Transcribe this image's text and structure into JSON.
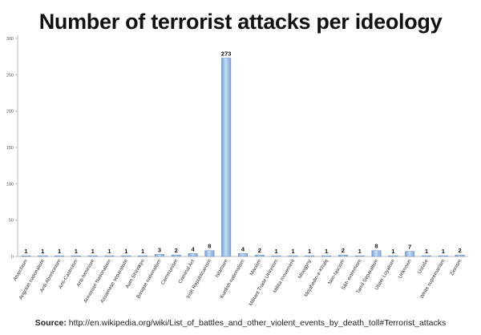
{
  "source": {
    "label": "Source:",
    "url": "http://en.wikipedia.org/wiki/List_of_battles_and_other_violent_events_by_death_toll#Terrorist_attacks"
  },
  "chart_data": {
    "type": "bar",
    "title": "Number of terrorist attacks per ideology",
    "xlabel": "",
    "ylabel": "",
    "ylim": [
      0,
      300
    ],
    "yticks": [
      0,
      50,
      100,
      150,
      200,
      250,
      300
    ],
    "grid": false,
    "categories": [
      "Anarchism",
      "Angolan nationalism",
      "Anti-Abortionism",
      "Anti-Castroism",
      "Anti-feminism",
      "Armenian Nationalism",
      "Assamese separatism",
      "Aum Shinrikyo",
      "Basque nationalism",
      "Communism",
      "Criminal Act",
      "Irish Republicanism",
      "Islamism",
      "Kurdish nationalism",
      "Maoism",
      "Militant Trade Unionism",
      "Militia movement",
      "Misogyny",
      "Mojahedin-e-Khalq",
      "Neo-fascism",
      "Sikh extremism",
      "Tamil Separatism",
      "Ulster Loyalism",
      "Unknown",
      "Ustaše",
      "White supremacism",
      "Zionism"
    ],
    "values": [
      1,
      1,
      1,
      1,
      1,
      1,
      1,
      1,
      3,
      2,
      4,
      8,
      273,
      4,
      2,
      1,
      1,
      1,
      1,
      2,
      1,
      8,
      1,
      7,
      1,
      1,
      2
    ],
    "bar_color": "#8fb4dd"
  }
}
